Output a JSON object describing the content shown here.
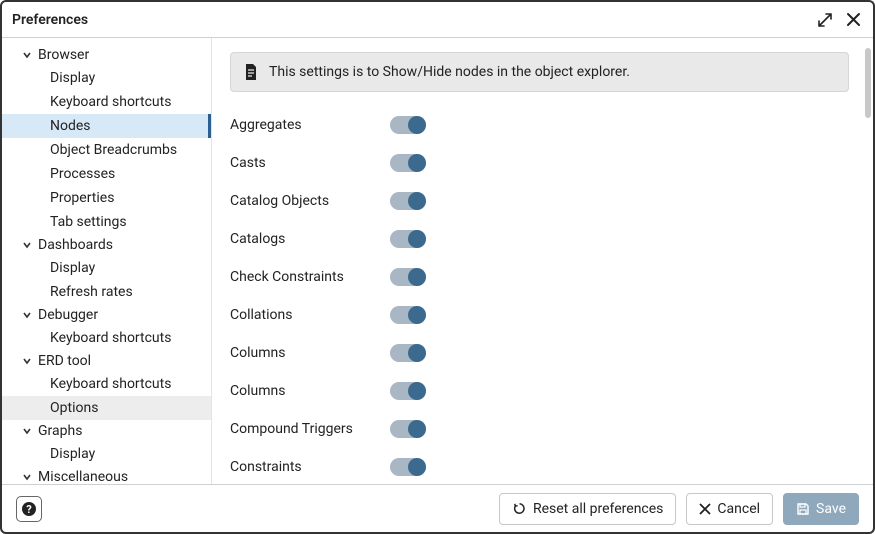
{
  "dialog": {
    "title": "Preferences"
  },
  "sidebar": {
    "groups": [
      {
        "label": "Browser",
        "expanded": true,
        "children": [
          {
            "label": "Display"
          },
          {
            "label": "Keyboard shortcuts"
          },
          {
            "label": "Nodes",
            "selected": true
          },
          {
            "label": "Object Breadcrumbs"
          },
          {
            "label": "Processes"
          },
          {
            "label": "Properties"
          },
          {
            "label": "Tab settings"
          }
        ]
      },
      {
        "label": "Dashboards",
        "expanded": true,
        "children": [
          {
            "label": "Display"
          },
          {
            "label": "Refresh rates"
          }
        ]
      },
      {
        "label": "Debugger",
        "expanded": true,
        "children": [
          {
            "label": "Keyboard shortcuts"
          }
        ]
      },
      {
        "label": "ERD tool",
        "expanded": true,
        "children": [
          {
            "label": "Keyboard shortcuts"
          },
          {
            "label": "Options",
            "hover": true
          }
        ]
      },
      {
        "label": "Graphs",
        "expanded": true,
        "children": [
          {
            "label": "Display"
          }
        ]
      },
      {
        "label": "Miscellaneous",
        "expanded": true,
        "children": []
      }
    ]
  },
  "main": {
    "banner_text": "This settings is to Show/Hide nodes in the object explorer.",
    "options": [
      {
        "label": "Aggregates",
        "on": true
      },
      {
        "label": "Casts",
        "on": true
      },
      {
        "label": "Catalog Objects",
        "on": true
      },
      {
        "label": "Catalogs",
        "on": true
      },
      {
        "label": "Check Constraints",
        "on": true
      },
      {
        "label": "Collations",
        "on": true
      },
      {
        "label": "Columns",
        "on": true
      },
      {
        "label": "Columns",
        "on": true
      },
      {
        "label": "Compound Triggers",
        "on": true
      },
      {
        "label": "Constraints",
        "on": true
      }
    ]
  },
  "footer": {
    "reset_label": "Reset all preferences",
    "cancel_label": "Cancel",
    "save_label": "Save"
  },
  "colors": {
    "toggle_track": "#a9b7c4",
    "toggle_knob_on": "#3b6a8e",
    "selected_bg": "#d7e8f7",
    "selected_border": "#2b5f8f",
    "banner_bg": "#e9e9e9",
    "primary_btn": "#8fa8bc"
  }
}
